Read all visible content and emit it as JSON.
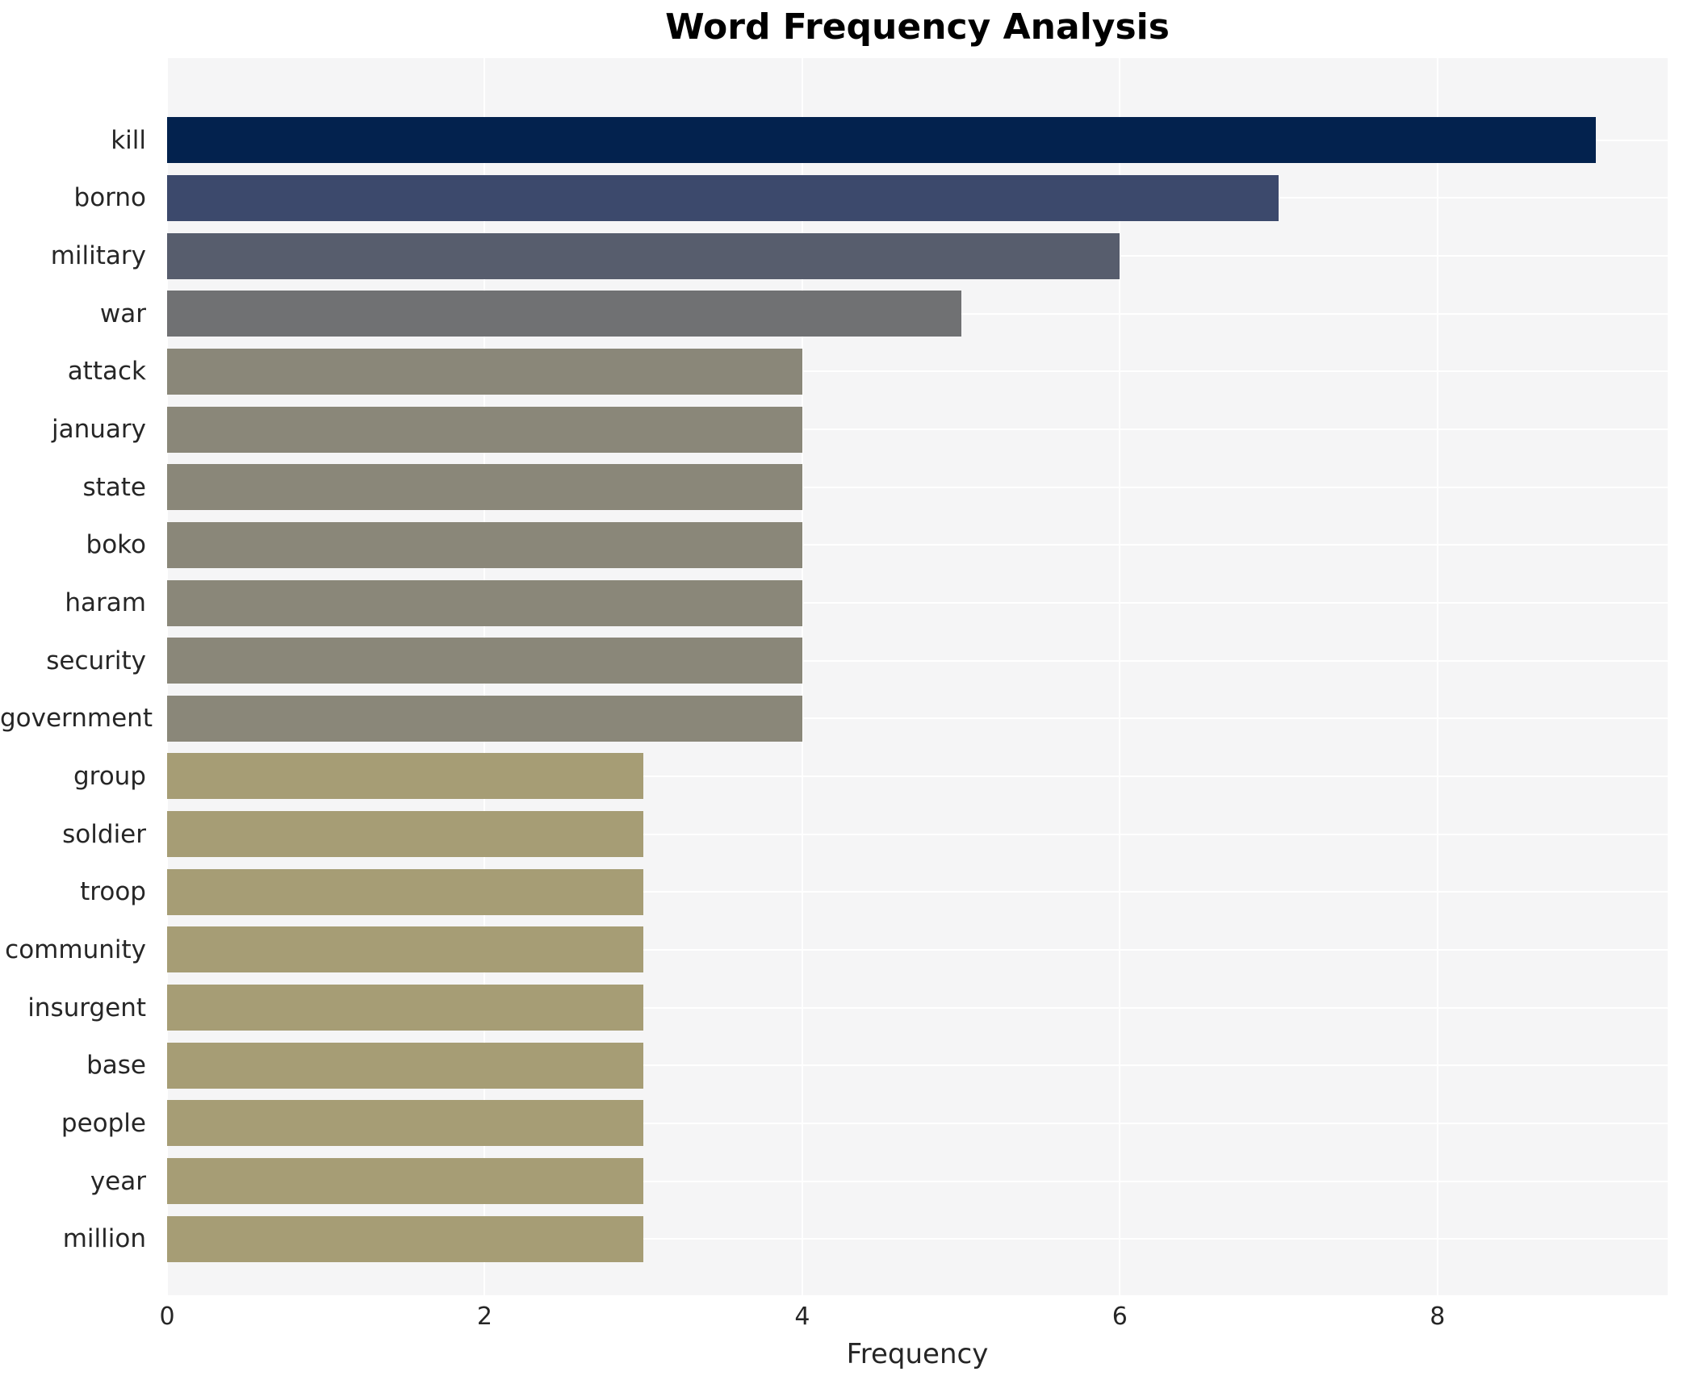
{
  "title": "Word Frequency Analysis",
  "xlabel": "Frequency",
  "chart_data": {
    "type": "bar",
    "orientation": "horizontal",
    "title": "Word Frequency Analysis",
    "xlabel": "Frequency",
    "ylabel": "",
    "categories": [
      "kill",
      "borno",
      "military",
      "war",
      "attack",
      "january",
      "state",
      "boko",
      "haram",
      "security",
      "government",
      "group",
      "soldier",
      "troop",
      "community",
      "insurgent",
      "base",
      "people",
      "year",
      "million"
    ],
    "values": [
      9,
      7,
      6,
      5,
      4,
      4,
      4,
      4,
      4,
      4,
      4,
      3,
      3,
      3,
      3,
      3,
      3,
      3,
      3,
      3
    ],
    "bar_colors": [
      "#03224e",
      "#3c496c",
      "#575d6d",
      "#707173",
      "#8a8779",
      "#8a8779",
      "#8a8779",
      "#8a8779",
      "#8a8779",
      "#8a8779",
      "#8a8779",
      "#a69d75",
      "#a69d75",
      "#a69d75",
      "#a69d75",
      "#a69d75",
      "#a69d75",
      "#a69d75",
      "#a69d75",
      "#a69d75"
    ],
    "x_ticks": [
      0,
      2,
      4,
      6,
      8
    ],
    "xlim": [
      0,
      9.45
    ],
    "grid": true,
    "legend": "none",
    "plot_background": "#f5f5f6",
    "grid_color": "#ffffff",
    "figure_background": "#ffffff"
  }
}
